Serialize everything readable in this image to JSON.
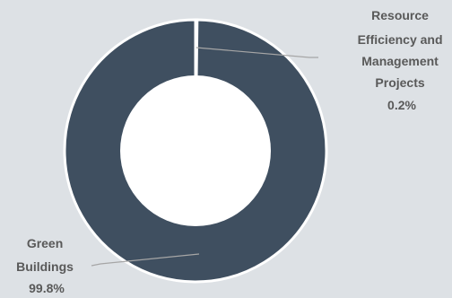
{
  "chart_data": {
    "type": "pie",
    "donut": true,
    "start_angle_deg": 0,
    "slices": [
      {
        "label_lines": [
          "Resource",
          "Efficiency  and",
          "Management",
          "Projects"
        ],
        "value_label": "0.2%",
        "value": 0.2,
        "color": "#3f4f60"
      },
      {
        "label_lines": [
          "Green",
          "Buildings"
        ],
        "value_label": "99.8%",
        "value": 99.8,
        "color": "#3f4f60"
      }
    ],
    "separator_color": "#ffffff",
    "inner_color": "#ffffff",
    "leader_color": "#a6a6a6",
    "legend": "none"
  }
}
